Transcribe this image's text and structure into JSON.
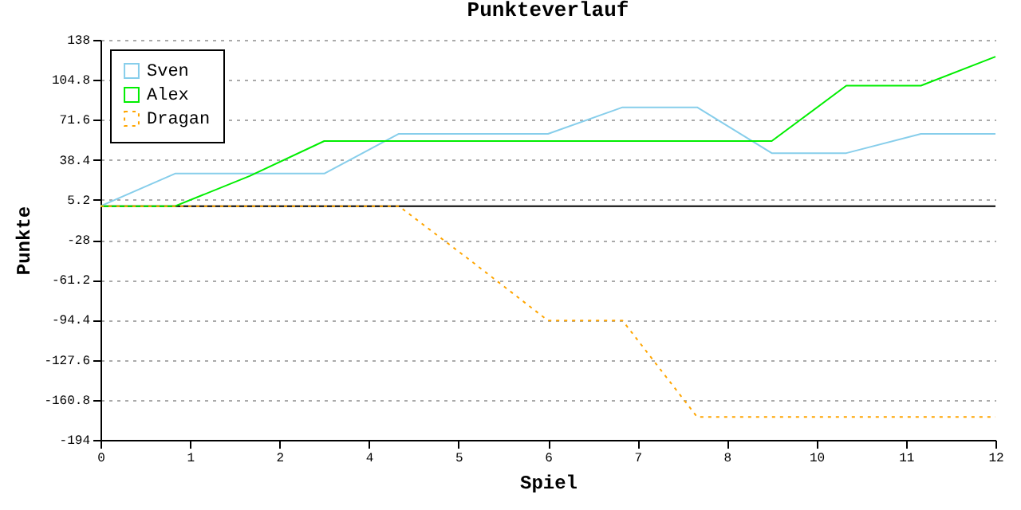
{
  "chart_data": {
    "type": "line",
    "title": "Punkteverlauf",
    "xlabel": "Spiel",
    "ylabel": "Punkte",
    "x": [
      0,
      1,
      2,
      3,
      4,
      5,
      6,
      7,
      8,
      9,
      10,
      11,
      12
    ],
    "xlim": [
      0,
      12
    ],
    "xticks": [
      {
        "value": 0,
        "label": "0"
      },
      {
        "value": 1.2,
        "label": "1"
      },
      {
        "value": 2.4,
        "label": "2"
      },
      {
        "value": 3.6,
        "label": "4"
      },
      {
        "value": 4.8,
        "label": "5"
      },
      {
        "value": 6,
        "label": "6"
      },
      {
        "value": 7.2,
        "label": "7"
      },
      {
        "value": 8.4,
        "label": "8"
      },
      {
        "value": 9.6,
        "label": "10"
      },
      {
        "value": 10.8,
        "label": "11"
      },
      {
        "value": 12,
        "label": "12"
      }
    ],
    "ylim": [
      -194,
      138
    ],
    "yticks": [
      -194,
      -160.8,
      -127.6,
      -94.4,
      -61.2,
      -28,
      5.2,
      38.4,
      71.6,
      104.8,
      138
    ],
    "series": [
      {
        "name": "Sven",
        "color": "#87ceeb",
        "line_style": "solid",
        "values": [
          0,
          27,
          27,
          27,
          60,
          60,
          60,
          82,
          82,
          44,
          44,
          60,
          60
        ]
      },
      {
        "name": "Alex",
        "color": "#00ee00",
        "line_style": "solid",
        "values": [
          0,
          0,
          25,
          54,
          54,
          54,
          54,
          54,
          54,
          54,
          100,
          100,
          124
        ]
      },
      {
        "name": "Dragan",
        "color": "#ffa500",
        "line_style": "dotted",
        "values": [
          0,
          0,
          0,
          0,
          0,
          -47,
          -95,
          -95,
          -175,
          -175,
          -175,
          -175,
          -175
        ]
      }
    ],
    "ref_lines": [
      {
        "axis": "y",
        "value": 0,
        "color": "#000000"
      }
    ],
    "grid": "y",
    "legend": "top left",
    "marker": "none"
  }
}
